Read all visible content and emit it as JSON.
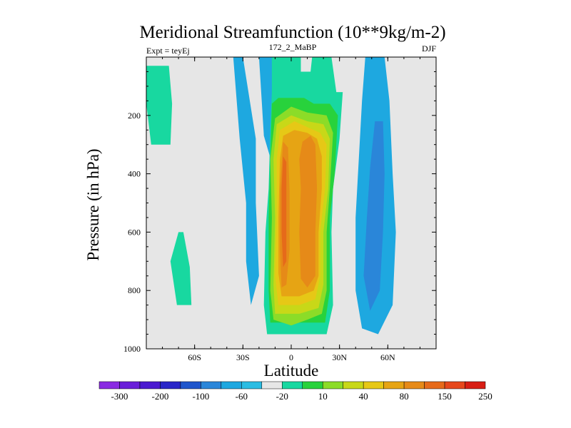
{
  "chart_data": {
    "type": "heatmap",
    "title": "Meridional Streamfunction (10**9kg/m-2)",
    "subtitle_left": "Expt = teyEj",
    "subtitle_center": "172_2_MaBP",
    "subtitle_right": "DJF",
    "xlabel": "Latitude",
    "ylabel": "Pressure (in hPa)",
    "xlim": [
      -90,
      90
    ],
    "ylim": [
      0,
      1000
    ],
    "y_inverted": true,
    "x_ticks": [
      {
        "value": -60,
        "label": "60S"
      },
      {
        "value": -30,
        "label": "30S"
      },
      {
        "value": 0,
        "label": "0"
      },
      {
        "value": 30,
        "label": "30N"
      },
      {
        "value": 60,
        "label": "60N"
      }
    ],
    "y_ticks": [
      {
        "value": 200,
        "label": "200"
      },
      {
        "value": 400,
        "label": "400"
      },
      {
        "value": 600,
        "label": "600"
      },
      {
        "value": 800,
        "label": "800"
      },
      {
        "value": 1000,
        "label": "1000"
      }
    ],
    "background_color": "#e6e6e6",
    "colorbar": {
      "colors": [
        "#8a2be2",
        "#6a1fd9",
        "#4b1ad0",
        "#2a26c8",
        "#1f56cc",
        "#2a86d9",
        "#1ea8e0",
        "#2bbde3",
        "#e6e6e6",
        "#18d8a0",
        "#28d23c",
        "#8cdc28",
        "#c8d818",
        "#e6c816",
        "#e6a414",
        "#e68a18",
        "#e66a1a",
        "#e6481c",
        "#d81e14"
      ],
      "labels": [
        "-300",
        "-200",
        "-100",
        "-60",
        "-20",
        "10",
        "40",
        "80",
        "150",
        "250"
      ]
    },
    "contour_regions": [
      {
        "level": "1-10 / 20",
        "color": "#18d8a0",
        "points": [
          [
            -91,
            3
          ],
          [
            -76,
            3
          ],
          [
            -74,
            16
          ],
          [
            -75,
            30
          ],
          [
            -87,
            30
          ],
          [
            -90,
            16
          ]
        ]
      },
      {
        "level": "1-10 / 20",
        "color": "#18d8a0",
        "points": [
          [
            -70,
            60
          ],
          [
            -75,
            70
          ],
          [
            -71,
            85
          ],
          [
            -62,
            85
          ],
          [
            -63,
            72
          ],
          [
            -67,
            60
          ]
        ]
      },
      {
        "level": "-20 / -10",
        "color": "#1ea8e0",
        "points": [
          [
            -20,
            0
          ],
          [
            -5,
            0
          ],
          [
            -4,
            35
          ],
          [
            -9,
            42
          ],
          [
            -17,
            27
          ]
        ]
      },
      {
        "level": "-20 / -10",
        "color": "#1ea8e0",
        "points": [
          [
            -36,
            0
          ],
          [
            -30,
            0
          ],
          [
            -22,
            28
          ],
          [
            -22,
            50
          ],
          [
            -20,
            75
          ],
          [
            -25,
            85
          ],
          [
            -28,
            70
          ],
          [
            -28,
            50
          ],
          [
            -32,
            28
          ]
        ]
      },
      {
        "level": "-20 / -10",
        "color": "#1ea8e0",
        "points": [
          [
            46,
            0
          ],
          [
            58,
            0
          ],
          [
            61,
            15
          ],
          [
            63,
            40
          ],
          [
            65,
            60
          ],
          [
            63,
            85
          ],
          [
            54,
            95
          ],
          [
            44,
            93
          ],
          [
            40,
            80
          ],
          [
            40,
            55
          ],
          [
            42,
            35
          ],
          [
            44,
            15
          ]
        ]
      },
      {
        "level": "-60 / -20",
        "color": "#2a86d9",
        "points": [
          [
            52,
            22
          ],
          [
            57,
            22
          ],
          [
            58,
            40
          ],
          [
            57,
            60
          ],
          [
            55,
            80
          ],
          [
            49,
            87
          ],
          [
            45,
            75
          ],
          [
            47,
            55
          ],
          [
            49,
            38
          ]
        ]
      },
      {
        "level": "1-10 / 20",
        "color": "#18d8a0",
        "points": [
          [
            -12,
            0
          ],
          [
            -2,
            0
          ],
          [
            3,
            0
          ],
          [
            6,
            0
          ],
          [
            6,
            5
          ],
          [
            12,
            5
          ],
          [
            13,
            0
          ],
          [
            25,
            0
          ],
          [
            28,
            12
          ],
          [
            32,
            12
          ],
          [
            30,
            28
          ],
          [
            26,
            45
          ],
          [
            25,
            60
          ],
          [
            26,
            85
          ],
          [
            22,
            95
          ],
          [
            -15,
            95
          ],
          [
            -17,
            85
          ],
          [
            -16,
            60
          ],
          [
            -14,
            45
          ],
          [
            -13,
            25
          ],
          [
            -12,
            12
          ]
        ]
      },
      {
        "level": "20 / 40",
        "color": "#28d23c",
        "points": [
          [
            -12,
            16
          ],
          [
            -8,
            14
          ],
          [
            2,
            14
          ],
          [
            8,
            14
          ],
          [
            14,
            16
          ],
          [
            24,
            16
          ],
          [
            29,
            20
          ],
          [
            27,
            40
          ],
          [
            24,
            55
          ],
          [
            24,
            80
          ],
          [
            21,
            91
          ],
          [
            -13,
            91
          ],
          [
            -14,
            80
          ],
          [
            -14,
            55
          ],
          [
            -13,
            35
          ]
        ]
      },
      {
        "level": "40 / 60",
        "color": "#8cdc28",
        "points": [
          [
            -10,
            21
          ],
          [
            0,
            17
          ],
          [
            10,
            19
          ],
          [
            22,
            20
          ],
          [
            26,
            26
          ],
          [
            24,
            45
          ],
          [
            22,
            60
          ],
          [
            22,
            80
          ],
          [
            19,
            88
          ],
          [
            10,
            90
          ],
          [
            0,
            92
          ],
          [
            -11,
            90
          ],
          [
            -13,
            80
          ],
          [
            -12,
            55
          ],
          [
            -13,
            35
          ]
        ]
      },
      {
        "level": "60 / 80",
        "color": "#c8d818",
        "points": [
          [
            -9,
            23
          ],
          [
            0,
            20
          ],
          [
            10,
            22
          ],
          [
            20,
            23
          ],
          [
            24,
            28
          ],
          [
            23,
            45
          ],
          [
            20,
            60
          ],
          [
            20,
            78
          ],
          [
            17,
            86
          ],
          [
            5,
            88
          ],
          [
            -10,
            88
          ],
          [
            -11,
            78
          ],
          [
            -10,
            55
          ],
          [
            -11,
            35
          ]
        ]
      },
      {
        "level": "80 / 100",
        "color": "#e6c816",
        "points": [
          [
            -7,
            25
          ],
          [
            2,
            22
          ],
          [
            10,
            24
          ],
          [
            18,
            26
          ],
          [
            22,
            30
          ],
          [
            21,
            45
          ],
          [
            18,
            60
          ],
          [
            18,
            75
          ],
          [
            15,
            83
          ],
          [
            5,
            85
          ],
          [
            -8,
            85
          ],
          [
            -10,
            75
          ],
          [
            -9,
            55
          ],
          [
            -9,
            35
          ]
        ]
      },
      {
        "level": "100 / 150",
        "color": "#e6a414",
        "points": [
          [
            -5,
            27
          ],
          [
            2,
            25
          ],
          [
            10,
            26
          ],
          [
            16,
            28
          ],
          [
            19,
            34
          ],
          [
            19,
            45
          ],
          [
            17,
            60
          ],
          [
            17,
            75
          ],
          [
            14,
            80
          ],
          [
            5,
            82
          ],
          [
            -6,
            82
          ],
          [
            -8,
            74
          ],
          [
            -8,
            55
          ],
          [
            -7,
            35
          ]
        ]
      },
      {
        "level": "150 / 200",
        "color": "#e68a18",
        "points": [
          [
            -5,
            29
          ],
          [
            -2,
            31
          ],
          [
            -1,
            46
          ],
          [
            -1,
            66
          ],
          [
            -3,
            78
          ],
          [
            -6,
            79
          ],
          [
            -7,
            66
          ],
          [
            -7,
            46
          ]
        ]
      },
      {
        "level": "150 / 200",
        "color": "#e68a18",
        "points": [
          [
            7,
            29
          ],
          [
            12,
            27
          ],
          [
            15,
            30
          ],
          [
            16,
            45
          ],
          [
            15,
            60
          ],
          [
            15,
            75
          ],
          [
            10,
            79
          ],
          [
            6,
            76
          ],
          [
            5,
            60
          ],
          [
            6,
            45
          ],
          [
            5,
            35
          ]
        ]
      },
      {
        "level": "200 / 250",
        "color": "#e66a1a",
        "points": [
          [
            -5,
            34
          ],
          [
            -3,
            36
          ],
          [
            -3,
            52
          ],
          [
            -3,
            70
          ],
          [
            -5,
            72
          ],
          [
            -6,
            60
          ],
          [
            -6,
            45
          ]
        ]
      }
    ]
  }
}
